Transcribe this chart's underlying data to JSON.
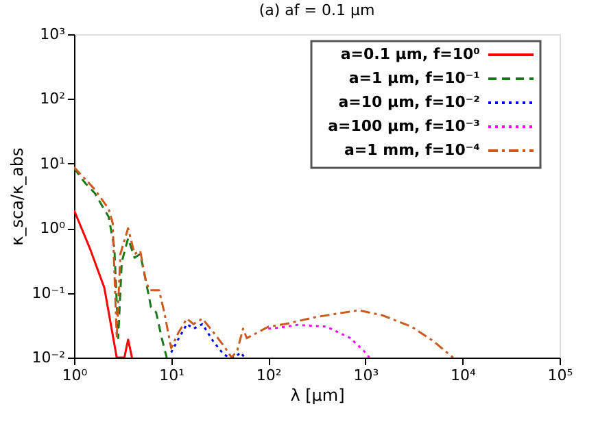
{
  "chart_data": {
    "type": "line",
    "title": "(a) af = 0.1 μm",
    "xlabel": "λ [μm]",
    "ylabel": "κ_sca/κ_abs",
    "log": "xy",
    "grid": false,
    "legend": "top right",
    "marker": "none",
    "xlim": [
      1,
      100000
    ],
    "ylim": [
      0.01,
      1000
    ],
    "xticks": [
      {
        "value": 1,
        "label": "10⁰"
      },
      {
        "value": 10,
        "label": "10¹"
      },
      {
        "value": 100,
        "label": "10²"
      },
      {
        "value": 1000,
        "label": "10³"
      },
      {
        "value": 10000,
        "label": "10⁴"
      },
      {
        "value": 100000,
        "label": "10⁵"
      }
    ],
    "yticks": [
      {
        "value": 0.01,
        "label": "10⁻²"
      },
      {
        "value": 0.1,
        "label": "10⁻¹"
      },
      {
        "value": 1,
        "label": "10⁰"
      },
      {
        "value": 10,
        "label": "10¹"
      },
      {
        "value": 100,
        "label": "10²"
      },
      {
        "value": 1000,
        "label": "10³"
      }
    ],
    "series": [
      {
        "name": "a=0.1 μm, f=10⁰",
        "color": "#ff0000",
        "line_style": "solid",
        "x": [
          1,
          1.47,
          2.05,
          2.75,
          3.3,
          3.6,
          3.95
        ],
        "values": [
          1.9,
          0.47,
          0.12,
          0.01,
          0.01,
          0.019,
          0.01
        ]
      },
      {
        "name": "a=1 μm, f=10⁻¹",
        "color": "#1a7a1a",
        "line_style": "dashed",
        "x": [
          1,
          1.3,
          1.63,
          2.27,
          2.6,
          2.85,
          3.1,
          3.6,
          4.2,
          4.8,
          5.5,
          6.2,
          7,
          8,
          9
        ],
        "values": [
          8.5,
          5,
          3.5,
          1.5,
          0.5,
          0.02,
          0.3,
          0.7,
          0.35,
          0.4,
          0.15,
          0.06,
          0.05,
          0.02,
          0.01
        ]
      },
      {
        "name": "a=10 μm, f=10⁻²",
        "color": "#0000ff",
        "line_style": "dotted",
        "x": [
          10,
          12,
          14.5,
          17,
          21,
          27,
          35,
          42,
          45,
          52,
          57
        ],
        "values": [
          0.012,
          0.02,
          0.033,
          0.028,
          0.033,
          0.018,
          0.011,
          0.01,
          0.01,
          0.012,
          0.01
        ]
      },
      {
        "name": "a=100 μm, f=10⁻³",
        "color": "#ff00ff",
        "line_style": "dotted",
        "x": [
          100,
          130,
          200,
          400,
          700,
          1000,
          1100
        ],
        "values": [
          0.028,
          0.029,
          0.032,
          0.03,
          0.02,
          0.012,
          0.01
        ]
      },
      {
        "name": "a=1 mm, f=10⁻⁴",
        "color": "#cc5a1e",
        "line_style": "dashdot",
        "x": [
          1,
          1.63,
          2.27,
          2.5,
          2.75,
          3.0,
          3.6,
          4.2,
          4.8,
          5.5,
          6,
          7.5,
          8.5,
          10,
          12,
          14.5,
          17,
          21,
          27,
          35,
          42,
          48,
          55,
          60,
          80,
          100,
          150,
          300,
          850,
          1500,
          3000,
          5000,
          8000
        ],
        "values": [
          8.8,
          4,
          2.0,
          1.2,
          0.02,
          0.4,
          1.0,
          0.4,
          0.45,
          0.15,
          0.11,
          0.11,
          0.05,
          0.014,
          0.025,
          0.04,
          0.033,
          0.04,
          0.025,
          0.015,
          0.01,
          0.013,
          0.028,
          0.02,
          0.025,
          0.03,
          0.033,
          0.042,
          0.054,
          0.045,
          0.03,
          0.018,
          0.01
        ]
      }
    ]
  }
}
